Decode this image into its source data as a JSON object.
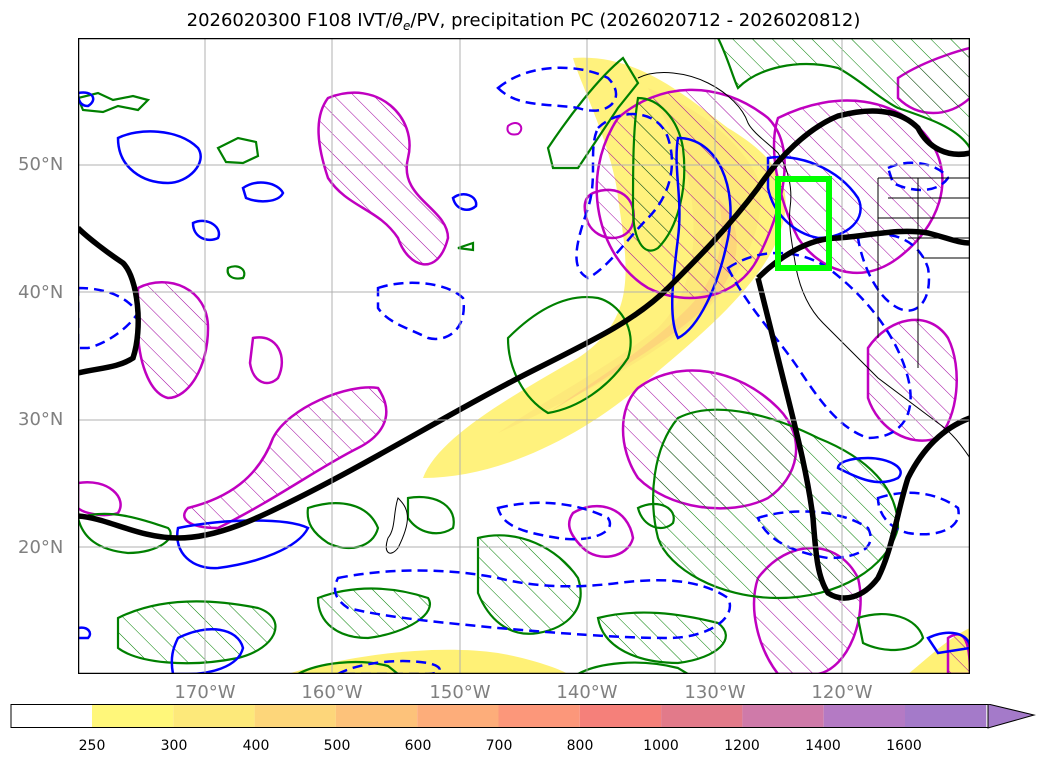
{
  "title": {
    "prefix": "2026020300 F108 IVT/",
    "theta": "θ",
    "theta_sub": "e",
    "suffix": "/PV, precipitation PC (2026020712 - 2026020812)"
  },
  "map": {
    "type": "map",
    "lat_labels": [
      "50°N",
      "40°N",
      "30°N",
      "20°N"
    ],
    "lon_labels": [
      "170°W",
      "160°W",
      "150°W",
      "140°W",
      "130°W",
      "120°W"
    ],
    "colors": {
      "ivt_fill": "#fff176",
      "ivt_core": "#ffd46a",
      "theta_e": "#000000",
      "pv_positive": "#0000ff",
      "precip_pc": "#008000",
      "anomaly": "#c000c0",
      "target_box": "#00ff00",
      "coast": "#000000",
      "grid": "#b0b0b0"
    }
  },
  "colorbar": {
    "ticks": [
      "250",
      "300",
      "400",
      "500",
      "600",
      "700",
      "800",
      "1000",
      "1200",
      "1400",
      "1600"
    ],
    "colors": [
      "#ffffff",
      "#fff77a",
      "#fde97a",
      "#fdd67a",
      "#fdc27a",
      "#fdad7a",
      "#fc977a",
      "#f5807a",
      "#e27a8a",
      "#cf7aa9",
      "#b47ac4",
      "#a47ac9"
    ]
  }
}
